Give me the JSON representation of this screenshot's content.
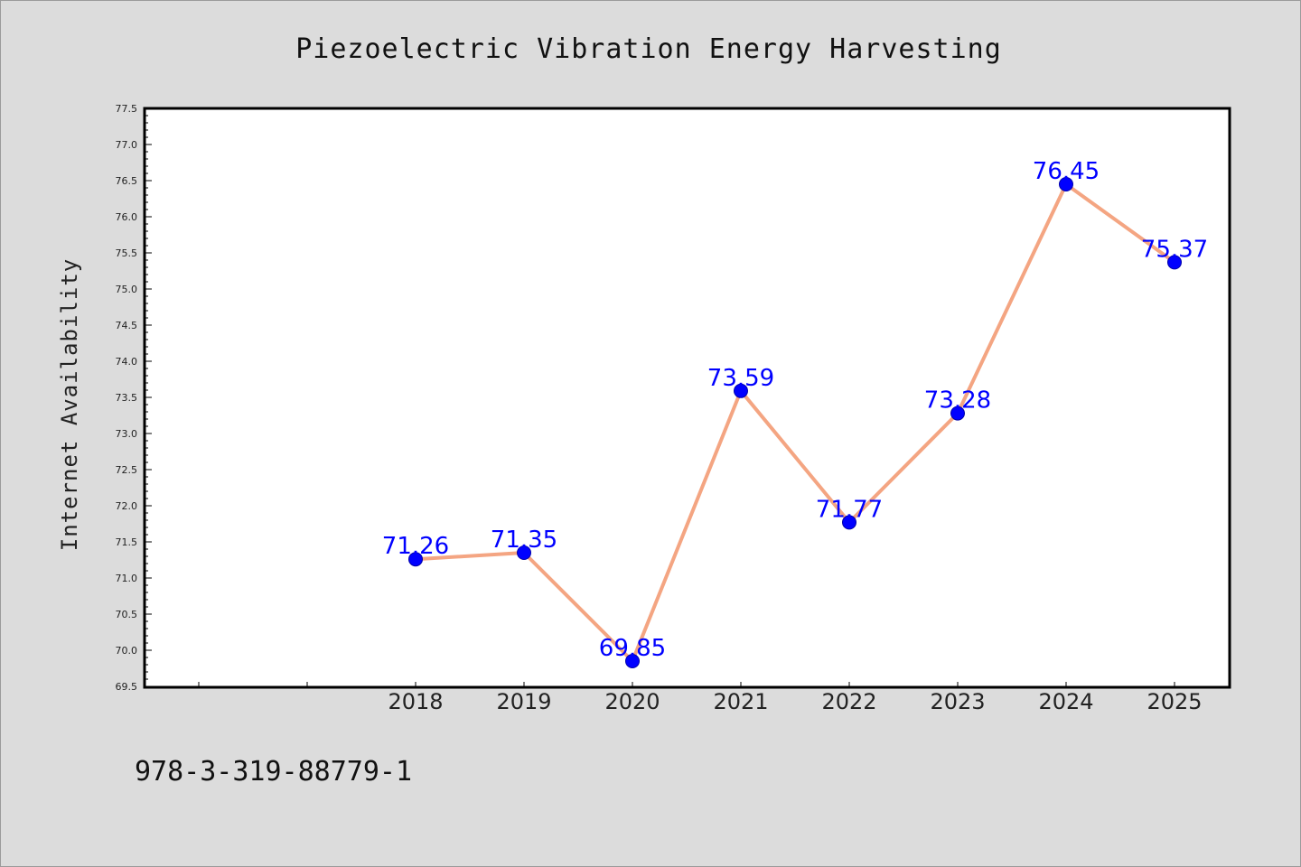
{
  "chart_data": {
    "type": "line",
    "title": "Piezoelectric Vibration Energy Harvesting",
    "xlabel": "",
    "ylabel": "Internet Availability",
    "categories": [
      "2018",
      "2019",
      "2020",
      "2021",
      "2022",
      "2023",
      "2024",
      "2025"
    ],
    "series": [
      {
        "values": [
          71.26,
          71.35,
          69.85,
          73.59,
          71.77,
          73.28,
          76.45,
          75.37
        ],
        "line_color": "#f4a582",
        "marker_color": "#0000ff"
      }
    ],
    "data_labels": [
      "71.26",
      "71.35",
      "69.85",
      "73.59",
      "71.77",
      "73.28",
      "76.45",
      "75.37"
    ],
    "ylim": [
      69.5,
      77.5
    ],
    "ytick_labels": [
      "69.5",
      "70.0",
      "70.5",
      "71.0",
      "71.5",
      "72.0",
      "72.5",
      "73.0",
      "73.5",
      "74.0",
      "74.5",
      "75.0",
      "75.5",
      "76.0",
      "76.5",
      "77.0",
      "77.5"
    ],
    "grid": false,
    "legend": "none",
    "background_color": "#dcdcdc",
    "plot_background_color": "#ffffff",
    "data_label_color": "#0000ff"
  },
  "footer": {
    "code": "978-3-319-88779-1"
  }
}
